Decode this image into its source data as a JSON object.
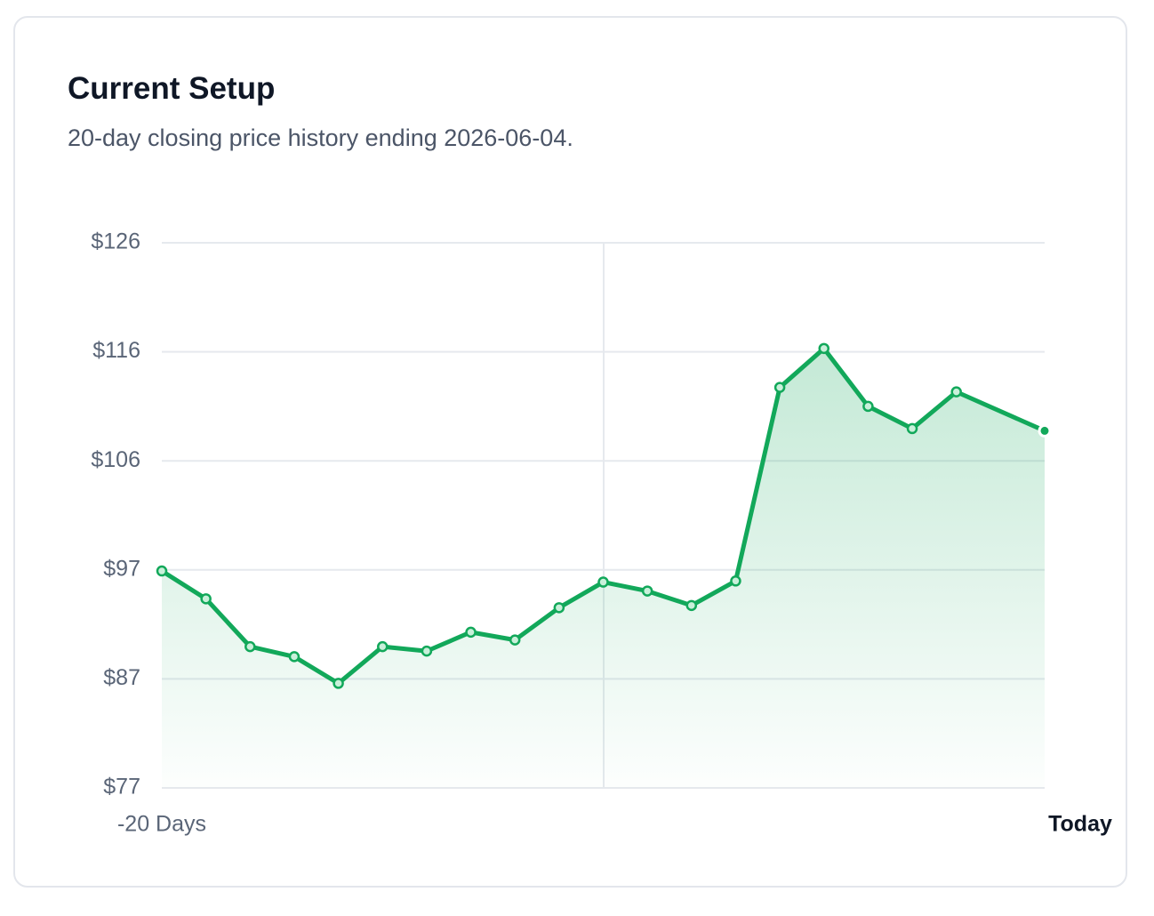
{
  "chart_data": {
    "type": "line",
    "title": "Current Setup",
    "subtitle": "20-day closing price history ending 2026-06-04.",
    "x": [
      -20,
      -19,
      -18,
      -17,
      -16,
      -15,
      -14,
      -13,
      -12,
      -11,
      -10,
      -9,
      -8,
      -7,
      -6,
      -5,
      -4,
      -3,
      -2,
      0
    ],
    "xlim": [
      -20,
      0
    ],
    "xticks": [
      {
        "value": -20,
        "label": "-20 Days"
      },
      {
        "value": 0,
        "label": "Today"
      }
    ],
    "series": [
      {
        "color": "#12a85a",
        "values": [
          96.5,
          94.0,
          89.7,
          88.8,
          86.4,
          89.7,
          89.3,
          91.0,
          90.3,
          93.2,
          95.5,
          94.7,
          93.4,
          95.6,
          113.0,
          116.5,
          111.3,
          109.3,
          112.6,
          109.1
        ]
      }
    ],
    "ylim": [
      77,
      126
    ],
    "yticks": [
      {
        "value": 126,
        "label": "$126"
      },
      {
        "value": 116.2,
        "label": "$116"
      },
      {
        "value": 106.4,
        "label": "$106"
      },
      {
        "value": 96.6,
        "label": "$97"
      },
      {
        "value": 86.8,
        "label": "$87"
      },
      {
        "value": 77,
        "label": "$77"
      }
    ],
    "grid": true
  }
}
